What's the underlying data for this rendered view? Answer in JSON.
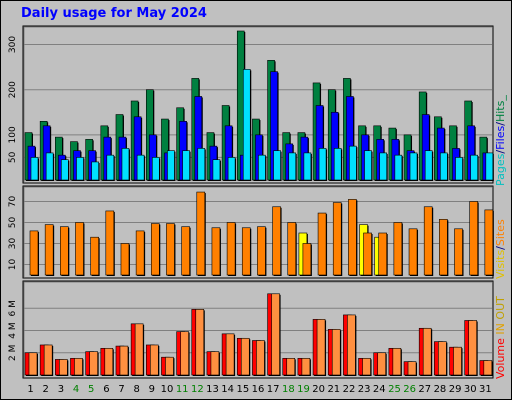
{
  "title": "Daily usage for May 2024",
  "colors": {
    "background": "#c0c0c0",
    "panel": "#c0c0c0",
    "hits": "#008040",
    "files": "#0000ff",
    "pages": "#00e0ff",
    "visits": "#ffff00",
    "sites": "#ff8000",
    "kbytes": "#ff0000",
    "in": "#ffa000",
    "out": "#c0a000",
    "weekend": "#008000",
    "weekday": "#000000"
  },
  "side_labels": {
    "top": [
      {
        "text": "Pages",
        "color": "#00c0c0"
      },
      {
        "text": "/",
        "color": "#000080"
      },
      {
        "text": "Files",
        "color": "#0000ff"
      },
      {
        "text": "/",
        "color": "#000080"
      },
      {
        "text": "Hits_",
        "color": "#008040"
      }
    ],
    "mid": [
      {
        "text": "Visits",
        "color": "#e0c000"
      },
      {
        "text": "/",
        "color": "#000080"
      },
      {
        "text": "Sites",
        "color": "#ff8000"
      }
    ],
    "bottom": [
      {
        "text": "Volume",
        "color": "#ff0000"
      },
      {
        "text": " ",
        "color": "#000000"
      },
      {
        "text": "IN",
        "color": "#e0a000"
      },
      {
        "text": " ",
        "color": "#000000"
      },
      {
        "text": "OUT",
        "color": "#c0a000"
      }
    ]
  },
  "chart_data": [
    {
      "type": "bar",
      "name": "hits_files_pages",
      "categories": [
        "1",
        "2",
        "3",
        "4",
        "5",
        "6",
        "7",
        "8",
        "9",
        "10",
        "11",
        "12",
        "13",
        "14",
        "15",
        "16",
        "17",
        "18",
        "19",
        "20",
        "21",
        "22",
        "23",
        "24",
        "25",
        "26",
        "27",
        "28",
        "29",
        "30",
        "31"
      ],
      "weekend": [
        4,
        5,
        11,
        12,
        18,
        19,
        25,
        26
      ],
      "yticks": [
        50,
        100,
        200,
        300
      ],
      "ylim": [
        0,
        330
      ],
      "series": [
        {
          "name": "Hits",
          "color": "#008040",
          "values": [
            105,
            130,
            95,
            85,
            90,
            120,
            145,
            175,
            200,
            135,
            160,
            225,
            105,
            165,
            330,
            135,
            265,
            105,
            105,
            215,
            200,
            225,
            120,
            120,
            115,
            100,
            195,
            140,
            120,
            175,
            95
          ]
        },
        {
          "name": "Files",
          "color": "#0000ff",
          "values": [
            75,
            120,
            55,
            65,
            65,
            95,
            95,
            140,
            100,
            60,
            130,
            185,
            75,
            120,
            55,
            100,
            240,
            80,
            95,
            165,
            150,
            185,
            100,
            90,
            90,
            65,
            145,
            115,
            70,
            120,
            60
          ]
        },
        {
          "name": "Pages",
          "color": "#00e0ff",
          "values": [
            50,
            60,
            45,
            50,
            40,
            55,
            70,
            55,
            50,
            65,
            65,
            70,
            45,
            50,
            245,
            55,
            65,
            60,
            60,
            70,
            70,
            75,
            65,
            60,
            55,
            60,
            65,
            60,
            50,
            55,
            60
          ]
        }
      ]
    },
    {
      "type": "bar",
      "name": "visits_sites",
      "categories": [
        "1",
        "2",
        "3",
        "4",
        "5",
        "6",
        "7",
        "8",
        "9",
        "10",
        "11",
        "12",
        "13",
        "14",
        "15",
        "16",
        "17",
        "18",
        "19",
        "20",
        "21",
        "22",
        "23",
        "24",
        "25",
        "26",
        "27",
        "28",
        "29",
        "30",
        "31"
      ],
      "yticks": [
        10,
        30,
        50,
        70
      ],
      "ylim": [
        0,
        80
      ],
      "series": [
        {
          "name": "Visits",
          "color": "#ffff00",
          "values": [
            null,
            null,
            null,
            null,
            null,
            null,
            null,
            null,
            null,
            null,
            null,
            null,
            null,
            null,
            null,
            null,
            null,
            null,
            40,
            null,
            null,
            null,
            48,
            36,
            null,
            null,
            null,
            null,
            null,
            null,
            null
          ]
        },
        {
          "name": "Sites",
          "color": "#ff8000",
          "values": [
            42,
            48,
            46,
            50,
            36,
            61,
            30,
            42,
            49,
            49,
            46,
            79,
            45,
            50,
            45,
            46,
            65,
            50,
            30,
            59,
            69,
            72,
            40,
            40,
            50,
            44,
            65,
            53,
            44,
            70,
            62
          ]
        }
      ]
    },
    {
      "type": "bar",
      "name": "volume",
      "categories": [
        "1",
        "2",
        "3",
        "4",
        "5",
        "6",
        "7",
        "8",
        "9",
        "10",
        "11",
        "12",
        "13",
        "14",
        "15",
        "16",
        "17",
        "18",
        "19",
        "20",
        "21",
        "22",
        "23",
        "24",
        "25",
        "26",
        "27",
        "28",
        "29",
        "30",
        "31"
      ],
      "yticks": [
        2,
        4,
        6
      ],
      "ytick_labels": [
        "2 M",
        "4 M",
        "6 M"
      ],
      "ylim": [
        0,
        8
      ],
      "series": [
        {
          "name": "Volume",
          "color": "#ff0000",
          "values": [
            2.0,
            2.7,
            1.4,
            1.5,
            2.1,
            2.4,
            2.6,
            4.6,
            2.7,
            1.6,
            3.9,
            5.9,
            2.1,
            3.7,
            3.3,
            3.1,
            7.3,
            1.5,
            1.5,
            5.0,
            4.1,
            5.4,
            1.5,
            2.0,
            2.4,
            1.2,
            4.2,
            3.0,
            2.5,
            4.9,
            1.3
          ]
        },
        {
          "name": "Volume OUT",
          "color": "#ff8000",
          "values": [
            2.0,
            2.7,
            1.4,
            1.5,
            2.1,
            2.4,
            2.6,
            4.6,
            2.7,
            1.6,
            3.9,
            5.9,
            2.1,
            3.7,
            3.3,
            3.1,
            7.3,
            1.5,
            1.5,
            5.0,
            4.1,
            5.4,
            1.5,
            2.0,
            2.4,
            1.2,
            4.2,
            3.0,
            2.5,
            4.9,
            1.3
          ]
        }
      ]
    }
  ]
}
